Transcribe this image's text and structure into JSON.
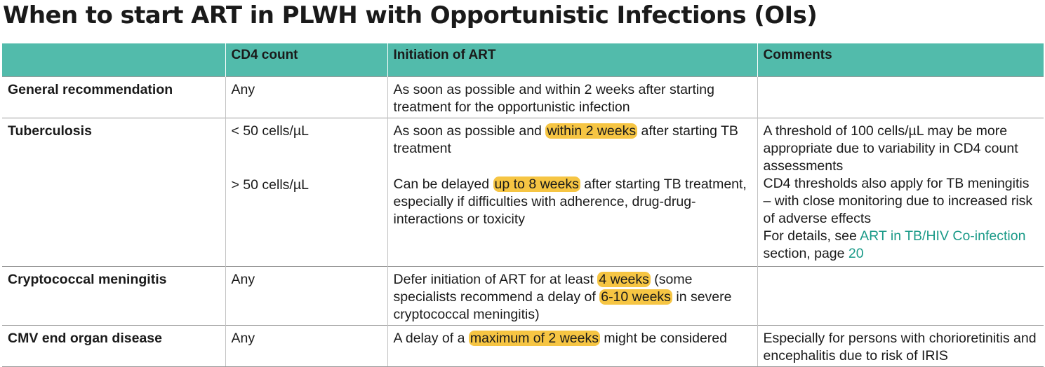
{
  "title": "When to start ART in PLWH with Opportunistic Infections (OIs)",
  "columns": [
    "",
    "CD4 count",
    "Initiation of ART",
    "Comments"
  ],
  "rows": {
    "general": {
      "condition": "General recommendation",
      "cd4": "Any",
      "initiation": "As soon as possible and within 2 weeks after starting treatment for the opportunistic infection"
    },
    "tb": {
      "condition": "Tuberculosis",
      "cd4_a": "< 50 cells/µL",
      "cd4_b": "> 50 cells/µL",
      "init_a_pre": "As soon as possible and ",
      "init_a_hl": "within 2 weeks",
      "init_a_post": " after starting TB treatment",
      "init_b_pre": "Can be delayed ",
      "init_b_hl": "up to 8 weeks",
      "init_b_post": " after starting TB treatment, especially if difficulties with adherence, drug-drug-interactions or toxicity",
      "comment_1": "A threshold of 100 cells/µL may be more appropriate due to variability in CD4 count assessments",
      "comment_2": "CD4 thresholds also apply for TB meningitis – with close monitoring due to increased risk of adverse effects",
      "comment_3_pre": "For details, see ",
      "comment_3_link": "ART in TB/HIV Co-infection",
      "comment_3_mid": " section, page ",
      "comment_3_page": "20"
    },
    "crypto": {
      "condition": "Cryptococcal meningitis",
      "cd4": "Any",
      "init_pre": "Defer initiation of ART for at least ",
      "init_hl1": "4 weeks",
      "init_mid": " (some specialists recommend a delay of ",
      "init_hl2": "6-10 weeks",
      "init_post": " in severe cryptococcal meningitis)"
    },
    "cmv": {
      "condition": "CMV end organ disease",
      "cd4": "Any",
      "init_pre": "A delay of a ",
      "init_hl": "maximum of 2 weeks",
      "init_post": " might be considered",
      "comment": "Especially for persons with chorioretinitis and encephalitis due to risk of IRIS"
    }
  },
  "colors": {
    "header_bg": "#52bbab",
    "highlight": "#f6c543",
    "link": "#1a9a88"
  }
}
